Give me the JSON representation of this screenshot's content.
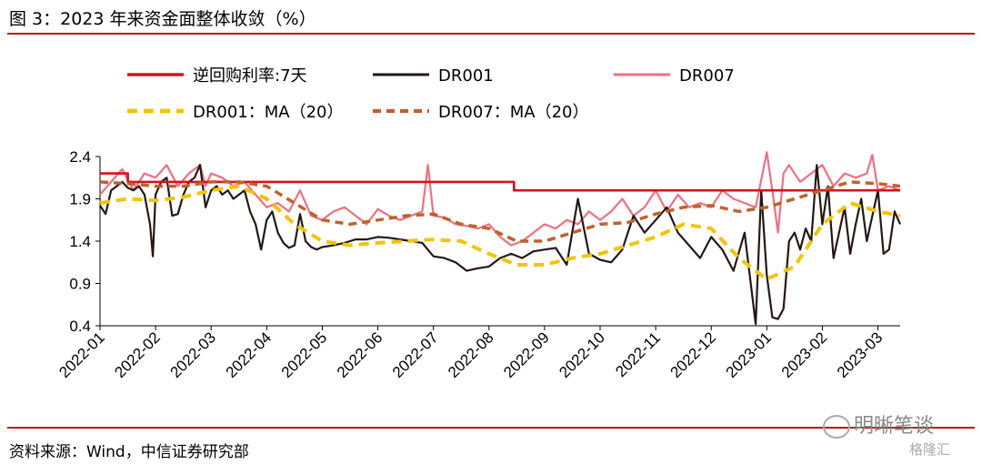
{
  "header": {
    "title": "图 3：2023 年来资金面整体收敛（%）"
  },
  "footer": {
    "source": "资料来源：Wind，中信证券研究部"
  },
  "watermark": {
    "text": "明晰笔谈",
    "logo_text": "格隆汇"
  },
  "colors": {
    "policy": "#d7101f",
    "dr001": "#231815",
    "dr007": "#f06f82",
    "ma001": "#f3c400",
    "ma007": "#c0612b",
    "rule": "#b71c1c"
  },
  "chart_data": {
    "type": "line",
    "xlabel": "",
    "ylabel": "",
    "ylim": [
      0.4,
      2.4
    ],
    "yticks": [
      "0.4",
      "0.9",
      "1.4",
      "1.9",
      "2.4"
    ],
    "x_ticks": [
      "2022-01",
      "2022-02",
      "2022-03",
      "2022-04",
      "2022-05",
      "2022-06",
      "2022-07",
      "2022-08",
      "2022-09",
      "2022-10",
      "2022-11",
      "2022-12",
      "2023-01",
      "2023-02",
      "2023-03"
    ],
    "x_range": [
      0,
      14.4
    ],
    "legend": [
      "逆回购利率:7天",
      "DR001",
      "DR007",
      "DR001：MA（20）",
      "DR007：MA（20）"
    ],
    "series": [
      {
        "name": "逆回购利率:7天",
        "style": "solid-thick",
        "x": [
          0,
          0.5,
          0.5,
          7.45,
          7.45,
          14.4
        ],
        "y": [
          2.2,
          2.2,
          2.1,
          2.1,
          2.0,
          2.0
        ]
      },
      {
        "name": "DR001",
        "style": "solid",
        "x": [
          0,
          0.1,
          0.2,
          0.3,
          0.4,
          0.5,
          0.6,
          0.7,
          0.8,
          0.9,
          0.95,
          1.0,
          1.1,
          1.2,
          1.3,
          1.4,
          1.5,
          1.6,
          1.7,
          1.8,
          1.9,
          2.0,
          2.1,
          2.2,
          2.3,
          2.4,
          2.5,
          2.6,
          2.7,
          2.8,
          2.9,
          3.0,
          3.1,
          3.2,
          3.3,
          3.4,
          3.5,
          3.6,
          3.7,
          3.8,
          3.9,
          4.0,
          4.2,
          4.4,
          4.6,
          4.8,
          5.0,
          5.2,
          5.4,
          5.6,
          5.8,
          6.0,
          6.2,
          6.4,
          6.6,
          6.8,
          7.0,
          7.2,
          7.4,
          7.6,
          7.8,
          8.0,
          8.2,
          8.4,
          8.6,
          8.8,
          9.0,
          9.2,
          9.4,
          9.6,
          9.8,
          10.0,
          10.2,
          10.4,
          10.6,
          10.8,
          11.0,
          11.2,
          11.4,
          11.6,
          11.8,
          11.9,
          12.0,
          12.1,
          12.2,
          12.3,
          12.4,
          12.5,
          12.6,
          12.7,
          12.8,
          12.9,
          13.0,
          13.1,
          13.2,
          13.3,
          13.4,
          13.5,
          13.6,
          13.7,
          13.8,
          13.9,
          14.0,
          14.1,
          14.2,
          14.3,
          14.4
        ],
        "y": [
          1.82,
          1.72,
          2.0,
          2.05,
          2.1,
          2.03,
          2.0,
          2.05,
          1.95,
          1.6,
          1.22,
          1.95,
          2.1,
          2.15,
          1.7,
          1.72,
          1.95,
          2.1,
          2.15,
          2.3,
          1.8,
          2.0,
          2.05,
          1.95,
          2.0,
          1.9,
          1.95,
          2.0,
          1.75,
          1.6,
          1.3,
          1.65,
          1.75,
          1.5,
          1.38,
          1.32,
          1.35,
          1.72,
          1.4,
          1.33,
          1.3,
          1.33,
          1.35,
          1.38,
          1.42,
          1.42,
          1.45,
          1.44,
          1.42,
          1.4,
          1.38,
          1.22,
          1.2,
          1.15,
          1.05,
          1.08,
          1.1,
          1.2,
          1.25,
          1.2,
          1.28,
          1.3,
          1.32,
          1.12,
          1.9,
          1.25,
          1.18,
          1.15,
          1.3,
          1.7,
          1.5,
          1.65,
          1.8,
          1.5,
          1.35,
          1.2,
          1.45,
          1.3,
          1.05,
          1.5,
          0.42,
          2.0,
          1.0,
          0.5,
          0.48,
          0.6,
          1.4,
          1.5,
          1.3,
          1.55,
          1.4,
          2.3,
          1.6,
          2.05,
          1.2,
          1.5,
          1.8,
          1.25,
          1.6,
          1.9,
          1.4,
          1.7,
          2.0,
          1.25,
          1.3,
          1.75,
          1.6
        ]
      },
      {
        "name": "DR007",
        "style": "solid",
        "x": [
          0,
          0.2,
          0.4,
          0.6,
          0.8,
          1.0,
          1.2,
          1.4,
          1.6,
          1.8,
          1.9,
          2.0,
          2.2,
          2.4,
          2.6,
          2.8,
          3.0,
          3.2,
          3.4,
          3.6,
          3.8,
          4.0,
          4.2,
          4.4,
          4.6,
          4.8,
          5.0,
          5.2,
          5.4,
          5.6,
          5.8,
          5.9,
          6.0,
          6.2,
          6.4,
          6.6,
          6.8,
          7.0,
          7.2,
          7.4,
          7.6,
          7.8,
          8.0,
          8.2,
          8.4,
          8.6,
          8.8,
          9.0,
          9.2,
          9.4,
          9.6,
          9.8,
          10.0,
          10.2,
          10.4,
          10.6,
          10.8,
          11.0,
          11.2,
          11.4,
          11.6,
          11.8,
          12.0,
          12.1,
          12.2,
          12.3,
          12.4,
          12.6,
          12.8,
          13.0,
          13.2,
          13.4,
          13.6,
          13.8,
          13.9,
          14.0,
          14.2,
          14.4
        ],
        "y": [
          1.95,
          2.1,
          2.25,
          2.0,
          2.2,
          2.15,
          2.3,
          2.05,
          2.2,
          2.3,
          2.05,
          2.2,
          2.15,
          2.05,
          2.1,
          1.95,
          1.8,
          1.85,
          1.75,
          2.0,
          1.7,
          1.65,
          1.75,
          1.8,
          1.7,
          1.6,
          1.78,
          1.7,
          1.65,
          1.7,
          1.75,
          2.3,
          1.7,
          1.68,
          1.6,
          1.58,
          1.55,
          1.6,
          1.45,
          1.35,
          1.4,
          1.5,
          1.6,
          1.55,
          1.65,
          1.6,
          1.75,
          1.65,
          1.75,
          1.9,
          1.7,
          1.8,
          2.0,
          1.75,
          1.95,
          1.8,
          1.85,
          1.8,
          2.0,
          1.9,
          1.85,
          1.8,
          2.45,
          2.0,
          1.5,
          2.2,
          2.3,
          2.1,
          2.2,
          2.3,
          2.05,
          2.2,
          2.15,
          2.2,
          2.42,
          2.0,
          2.05,
          2.0
        ]
      },
      {
        "name": "DR001：MA（20）",
        "style": "dashed",
        "x": [
          0,
          0.5,
          1.0,
          1.5,
          2.0,
          2.5,
          3.0,
          3.5,
          4.0,
          4.5,
          5.0,
          5.5,
          6.0,
          6.5,
          7.0,
          7.5,
          8.0,
          8.5,
          9.0,
          9.5,
          10.0,
          10.5,
          11.0,
          11.5,
          12.0,
          12.5,
          13.0,
          13.5,
          14.0,
          14.4
        ],
        "y": [
          1.85,
          1.9,
          1.88,
          1.92,
          2.0,
          2.05,
          1.9,
          1.6,
          1.4,
          1.35,
          1.38,
          1.4,
          1.42,
          1.4,
          1.25,
          1.12,
          1.12,
          1.2,
          1.25,
          1.35,
          1.45,
          1.6,
          1.55,
          1.2,
          0.95,
          1.1,
          1.6,
          1.85,
          1.75,
          1.7
        ]
      },
      {
        "name": "DR007：MA（20）",
        "style": "dashed",
        "x": [
          0,
          0.5,
          1.0,
          1.5,
          2.0,
          2.5,
          3.0,
          3.5,
          4.0,
          4.5,
          5.0,
          5.5,
          6.0,
          6.5,
          7.0,
          7.5,
          8.0,
          8.5,
          9.0,
          9.5,
          10.0,
          10.5,
          11.0,
          11.5,
          12.0,
          12.5,
          13.0,
          13.5,
          14.0,
          14.4
        ],
        "y": [
          2.1,
          2.08,
          2.05,
          2.05,
          2.1,
          2.1,
          2.05,
          1.85,
          1.65,
          1.6,
          1.65,
          1.7,
          1.72,
          1.6,
          1.55,
          1.4,
          1.4,
          1.5,
          1.6,
          1.62,
          1.72,
          1.8,
          1.82,
          1.75,
          1.8,
          1.9,
          2.0,
          2.1,
          2.08,
          2.05
        ]
      }
    ]
  }
}
